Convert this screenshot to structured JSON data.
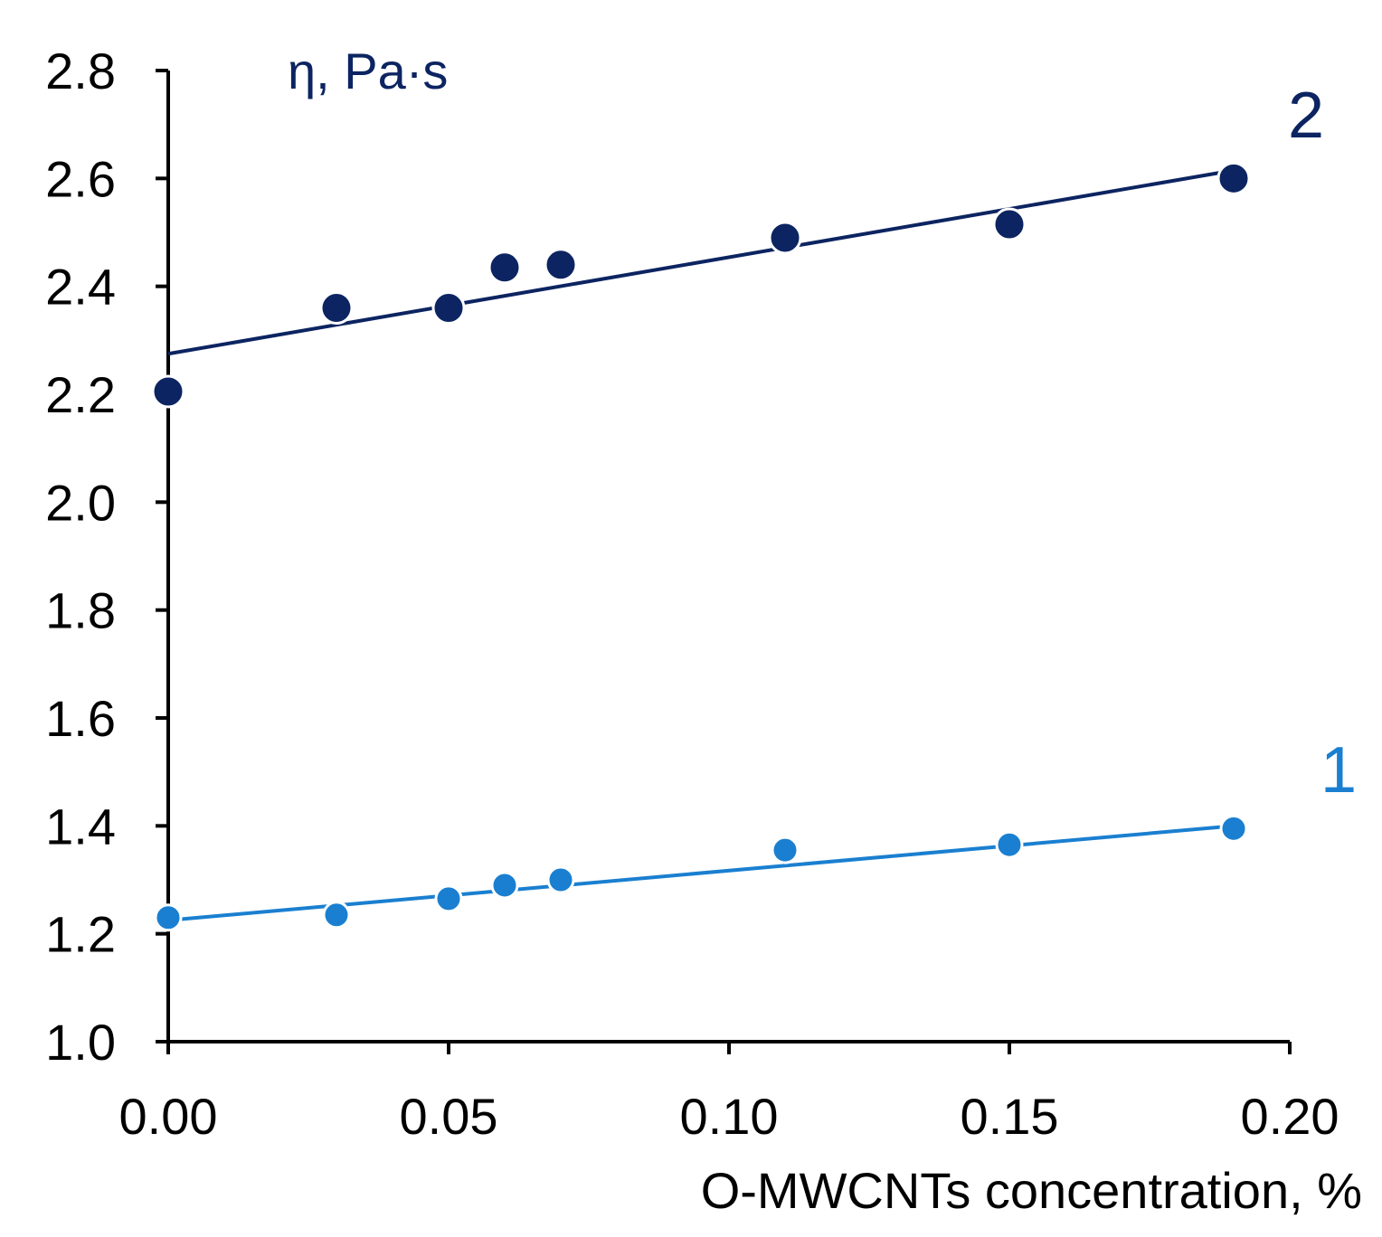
{
  "chart_data": {
    "type": "scatter",
    "title": "",
    "xlabel": "O-MWCNTs concentration, %",
    "ylabel": "η, Pa·s",
    "xlim": [
      0.0,
      0.2
    ],
    "ylim": [
      1.0,
      2.8
    ],
    "x_ticks": [
      "0.00",
      "0.05",
      "0.10",
      "0.15",
      "0.20"
    ],
    "y_ticks": [
      "1.0",
      "1.2",
      "1.4",
      "1.6",
      "1.8",
      "2.0",
      "2.2",
      "2.4",
      "2.6",
      "2.8"
    ],
    "grid": false,
    "series": [
      {
        "name": "1",
        "color": "#1a7fd0",
        "x": [
          0.0,
          0.03,
          0.05,
          0.06,
          0.07,
          0.11,
          0.15,
          0.19
        ],
        "y": [
          1.23,
          1.235,
          1.265,
          1.29,
          1.3,
          1.355,
          1.365,
          1.395
        ],
        "trendline": {
          "x": [
            0.0,
            0.19
          ],
          "y": [
            1.225,
            1.4
          ]
        }
      },
      {
        "name": "2",
        "color": "#0c2461",
        "x": [
          0.0,
          0.03,
          0.05,
          0.06,
          0.07,
          0.11,
          0.15,
          0.19
        ],
        "y": [
          2.205,
          2.36,
          2.36,
          2.435,
          2.44,
          2.49,
          2.515,
          2.6
        ],
        "trendline": {
          "x": [
            0.0,
            0.19
          ],
          "y": [
            2.275,
            2.615
          ]
        }
      }
    ]
  }
}
